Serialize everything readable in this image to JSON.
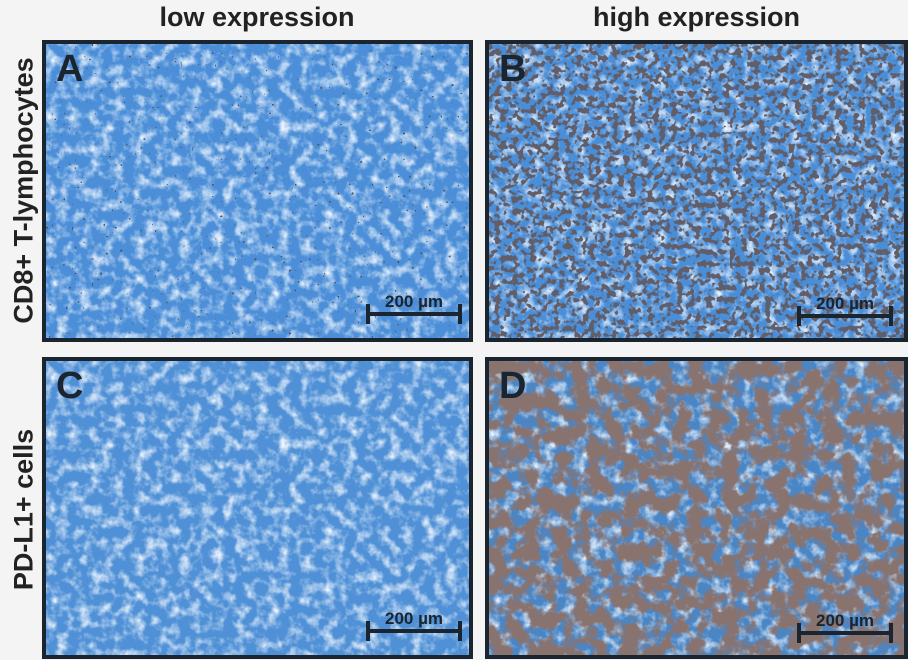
{
  "columns": [
    "low expression",
    "high expression"
  ],
  "rows": [
    "CD8+ T-lymphocytes",
    "PD-L1+ cells"
  ],
  "panels": [
    {
      "letter": "A",
      "scale_bar": "200 µm"
    },
    {
      "letter": "B",
      "scale_bar": "200 µm"
    },
    {
      "letter": "C",
      "scale_bar": "200 µm"
    },
    {
      "letter": "D",
      "scale_bar": "200 µm"
    }
  ]
}
